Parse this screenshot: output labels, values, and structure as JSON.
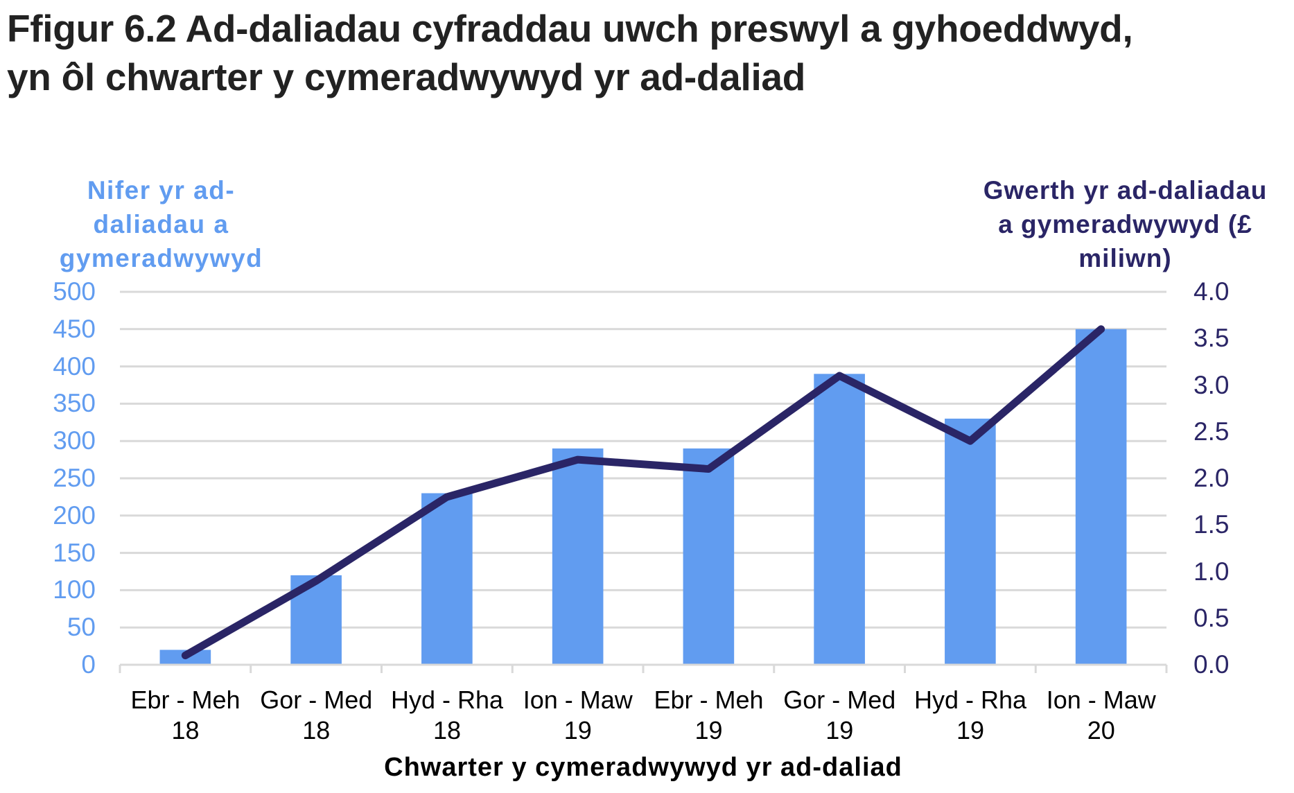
{
  "title": {
    "line1": "Ffigur 6.2  Ad-daliadau cyfraddau uwch preswyl a gyhoeddwyd,",
    "line2": "yn ôl chwarter y cymeradwywyd yr ad-daliad"
  },
  "axes": {
    "left_title_lines": [
      "Nifer yr ad-",
      "daliadau a",
      "gymeradwywyd"
    ],
    "right_title_lines": [
      "Gwerth yr ad-daliadau",
      "a gymeradwywyd (£",
      "miliwn)"
    ],
    "x_title": "Chwarter y  cymeradwywyd yr ad-daliad",
    "left_ticks": [
      "500",
      "450",
      "400",
      "350",
      "300",
      "250",
      "200",
      "150",
      "100",
      "50",
      "0"
    ],
    "right_ticks": [
      "4.0",
      "3.5",
      "3.0",
      "2.5",
      "2.0",
      "1.5",
      "1.0",
      "0.5",
      "0.0"
    ]
  },
  "colors": {
    "bar": "#619CF0",
    "line": "#2A2566",
    "grid": "#D9D9D9",
    "left_axis_text": "#619CF0",
    "right_axis_text": "#2A2566"
  },
  "chart_data": {
    "type": "bar",
    "title": "Ffigur 6.2  Ad-daliadau cyfraddau uwch preswyl a gyhoeddwyd, yn ôl chwarter y cymeradwywyd yr ad-daliad",
    "xlabel": "Chwarter y  cymeradwywyd yr ad-daliad",
    "ylabel": "Nifer yr ad-daliadau a gymeradwywyd",
    "y2label": "Gwerth yr ad-daliadau a gymeradwywyd (£ miliwn)",
    "categories": [
      [
        "Ebr - Meh",
        "18"
      ],
      [
        "Gor - Med",
        "18"
      ],
      [
        "Hyd - Rha",
        "18"
      ],
      [
        "Ion - Maw",
        "19"
      ],
      [
        "Ebr - Meh",
        "19"
      ],
      [
        "Gor - Med",
        "19"
      ],
      [
        "Hyd - Rha",
        "19"
      ],
      [
        "Ion - Maw",
        "20"
      ]
    ],
    "series": [
      {
        "name": "Nifer yr ad-daliadau a gymeradwywyd",
        "type": "bar",
        "axis": "left",
        "values": [
          20,
          120,
          230,
          290,
          290,
          390,
          330,
          450
        ]
      },
      {
        "name": "Gwerth yr ad-daliadau a gymeradwywyd (£ miliwn)",
        "type": "line",
        "axis": "right",
        "values": [
          0.1,
          0.9,
          1.8,
          2.2,
          2.1,
          3.1,
          2.4,
          3.6
        ]
      }
    ],
    "ylim": [
      0,
      500
    ],
    "y2lim": [
      0,
      4.0
    ],
    "y_step": 50,
    "y2_step": 0.5,
    "grid": true,
    "legend": "none"
  }
}
